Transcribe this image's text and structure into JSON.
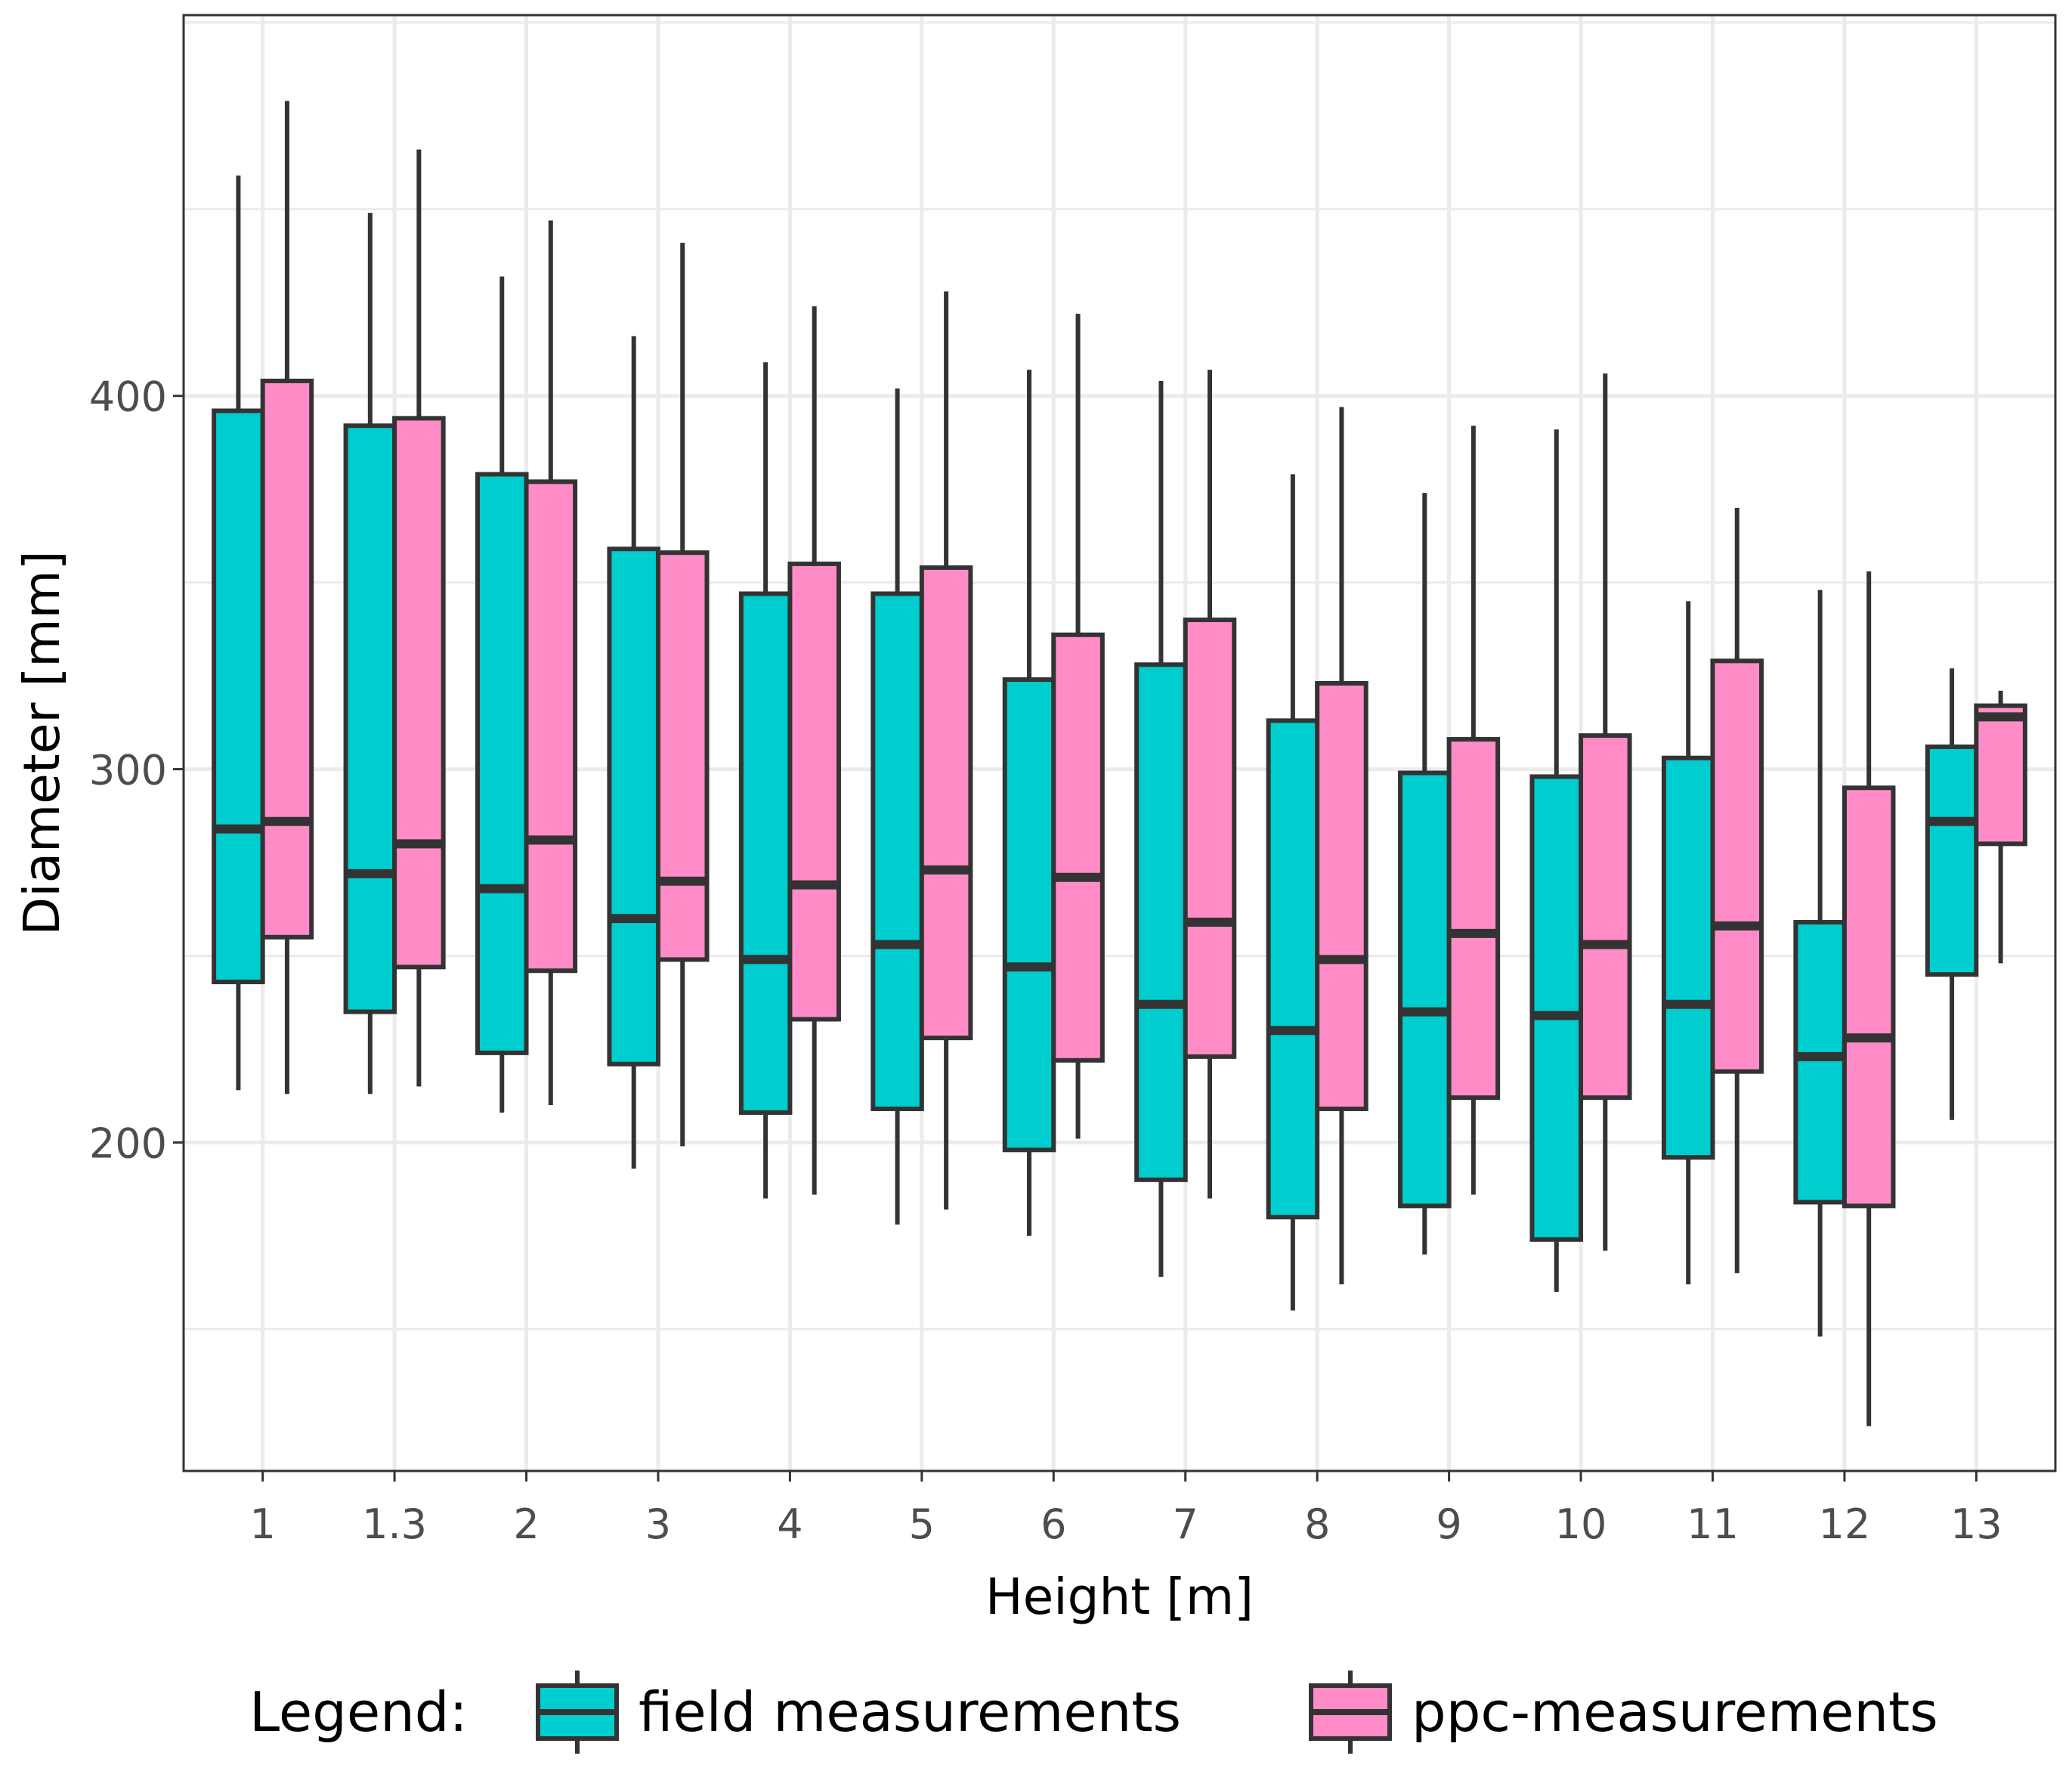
{
  "chart_data": {
    "type": "boxplot",
    "title": "",
    "xlabel": "Height [m]",
    "ylabel": "Diameter [mm]",
    "ylim": [
      112,
      502
    ],
    "yticks": [
      200,
      300,
      400
    ],
    "grid": true,
    "legend": {
      "title": "Legend:",
      "position": "bottom",
      "entries": [
        {
          "name": "field measurements",
          "color": "#00CDCD"
        },
        {
          "name": "ppc-measurements",
          "color": "#FF8CC6"
        }
      ]
    },
    "categories": [
      "1",
      "1.3",
      "2",
      "3",
      "4",
      "5",
      "6",
      "7",
      "8",
      "9",
      "10",
      "11",
      "12",
      "13"
    ],
    "series": [
      {
        "name": "field measurements",
        "color": "#00CDCD",
        "boxes": [
          {
            "min": 214,
            "q1": 243,
            "median": 284,
            "q3": 396,
            "max": 459
          },
          {
            "min": 213,
            "q1": 235,
            "median": 272,
            "q3": 392,
            "max": 449
          },
          {
            "min": 208,
            "q1": 224,
            "median": 268,
            "q3": 379,
            "max": 432
          },
          {
            "min": 193,
            "q1": 221,
            "median": 260,
            "q3": 359,
            "max": 416
          },
          {
            "min": 185,
            "q1": 208,
            "median": 249,
            "q3": 347,
            "max": 409
          },
          {
            "min": 178,
            "q1": 209,
            "median": 253,
            "q3": 347,
            "max": 402
          },
          {
            "min": 175,
            "q1": 198,
            "median": 247,
            "q3": 324,
            "max": 407
          },
          {
            "min": 164,
            "q1": 190,
            "median": 237,
            "q3": 328,
            "max": 404
          },
          {
            "min": 155,
            "q1": 180,
            "median": 230,
            "q3": 313,
            "max": 379
          },
          {
            "min": 170,
            "q1": 183,
            "median": 235,
            "q3": 299,
            "max": 374
          },
          {
            "min": 160,
            "q1": 174,
            "median": 234,
            "q3": 298,
            "max": 391
          },
          {
            "min": 162,
            "q1": 196,
            "median": 237,
            "q3": 303,
            "max": 345
          },
          {
            "min": 148,
            "q1": 184,
            "median": 223,
            "q3": 259,
            "max": 348
          },
          {
            "min": 206,
            "q1": 245,
            "median": 286,
            "q3": 306,
            "max": 327
          }
        ]
      },
      {
        "name": "ppc-measurements",
        "color": "#FF8CC6",
        "boxes": [
          {
            "min": 213,
            "q1": 255,
            "median": 286,
            "q3": 404,
            "max": 479
          },
          {
            "min": 215,
            "q1": 247,
            "median": 280,
            "q3": 394,
            "max": 466
          },
          {
            "min": 210,
            "q1": 246,
            "median": 281,
            "q3": 377,
            "max": 447
          },
          {
            "min": 199,
            "q1": 249,
            "median": 270,
            "q3": 358,
            "max": 441
          },
          {
            "min": 186,
            "q1": 233,
            "median": 269,
            "q3": 355,
            "max": 424
          },
          {
            "min": 182,
            "q1": 228,
            "median": 273,
            "q3": 354,
            "max": 428
          },
          {
            "min": 201,
            "q1": 222,
            "median": 271,
            "q3": 336,
            "max": 422
          },
          {
            "min": 185,
            "q1": 223,
            "median": 259,
            "q3": 340,
            "max": 407
          },
          {
            "min": 162,
            "q1": 209,
            "median": 249,
            "q3": 323,
            "max": 397
          },
          {
            "min": 186,
            "q1": 212,
            "median": 256,
            "q3": 308,
            "max": 392
          },
          {
            "min": 171,
            "q1": 212,
            "median": 253,
            "q3": 309,
            "max": 406
          },
          {
            "min": 165,
            "q1": 219,
            "median": 258,
            "q3": 329,
            "max": 370
          },
          {
            "min": 124,
            "q1": 183,
            "median": 228,
            "q3": 295,
            "max": 353
          },
          {
            "min": 248,
            "q1": 280,
            "median": 314,
            "q3": 317,
            "max": 321
          }
        ]
      }
    ]
  }
}
